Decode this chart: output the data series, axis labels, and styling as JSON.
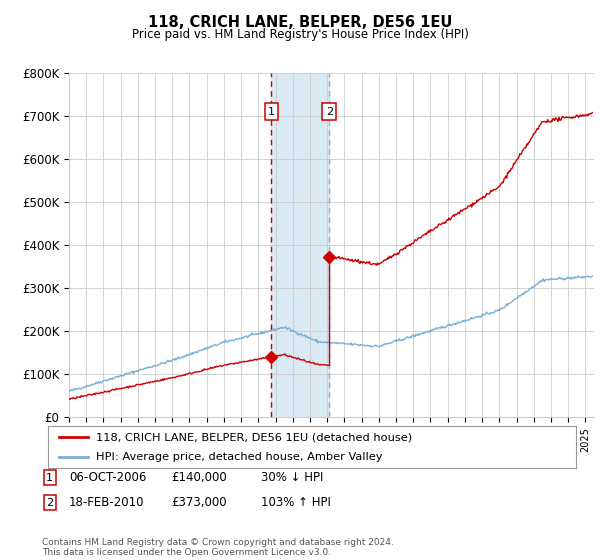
{
  "title": "118, CRICH LANE, BELPER, DE56 1EU",
  "subtitle": "Price paid vs. HM Land Registry's House Price Index (HPI)",
  "ylabel_ticks": [
    "£0",
    "£100K",
    "£200K",
    "£300K",
    "£400K",
    "£500K",
    "£600K",
    "£700K",
    "£800K"
  ],
  "ytick_values": [
    0,
    100000,
    200000,
    300000,
    400000,
    500000,
    600000,
    700000,
    800000
  ],
  "ylim": [
    0,
    800000
  ],
  "xlim_start": 1995.0,
  "xlim_end": 2025.5,
  "sale1_date": 2006.76,
  "sale1_price": 140000,
  "sale2_date": 2010.12,
  "sale2_price": 373000,
  "legend_line1": "118, CRICH LANE, BELPER, DE56 1EU (detached house)",
  "legend_line2": "HPI: Average price, detached house, Amber Valley",
  "footnote": "Contains HM Land Registry data © Crown copyright and database right 2024.\nThis data is licensed under the Open Government Licence v3.0.",
  "line_color_red": "#cc0000",
  "line_color_blue": "#7aafd4",
  "shade_color": "#daeaf5",
  "bg_color": "#ffffff",
  "grid_color": "#cccccc",
  "sale1_info": "06-OCT-2006",
  "sale1_price_str": "£140,000",
  "sale1_hpi": "30% ↓ HPI",
  "sale2_info": "18-FEB-2010",
  "sale2_price_str": "£373,000",
  "sale2_hpi": "103% ↑ HPI"
}
